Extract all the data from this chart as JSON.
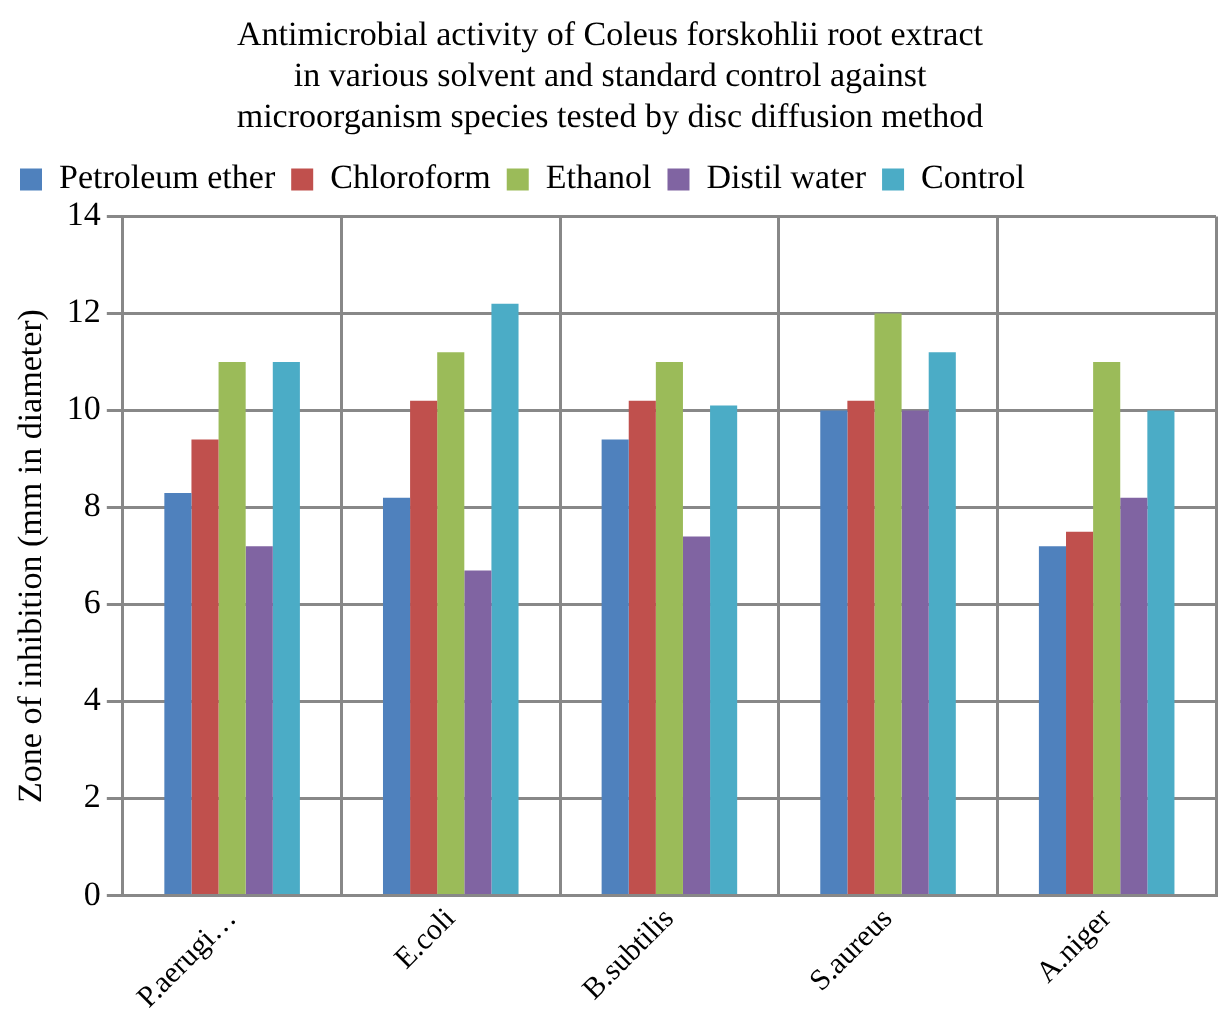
{
  "chart_data": {
    "type": "bar",
    "title": "Antimicrobial activity of Coleus forskohlii root extract\nin various solvent and standard control against\nmicroorganism species tested by disc diffusion method",
    "ylabel": "Zone of inhibition (mm in diameter)",
    "categories": [
      "P.aerugi…",
      "E.coli",
      "B.subtilis",
      "S.aureus",
      "A.niger"
    ],
    "series": [
      {
        "name": "Petroleum ether",
        "color": "#4f81bd",
        "values": [
          8.3,
          8.2,
          9.4,
          10.0,
          7.2
        ]
      },
      {
        "name": "Chloroform",
        "color": "#c0504d",
        "values": [
          9.4,
          10.2,
          10.2,
          10.2,
          7.5
        ]
      },
      {
        "name": "Ethanol",
        "color": "#9bbb59",
        "values": [
          11.0,
          11.2,
          11.0,
          12.0,
          11.0
        ]
      },
      {
        "name": "Distil water",
        "color": "#8064a2",
        "values": [
          7.2,
          6.7,
          7.4,
          10.0,
          8.2
        ]
      },
      {
        "name": "Control",
        "color": "#4bacc6",
        "values": [
          11.0,
          12.2,
          10.1,
          11.2,
          10.0
        ]
      }
    ],
    "ylim": [
      0,
      14
    ],
    "yticks": [
      0,
      2,
      4,
      6,
      8,
      10,
      12,
      14
    ],
    "grid": true,
    "legend": "top"
  }
}
